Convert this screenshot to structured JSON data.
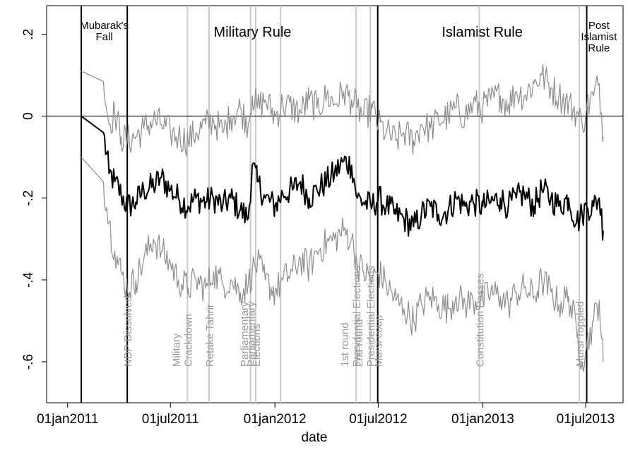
{
  "chart_data": {
    "type": "line",
    "xlabel": "date",
    "ylabel": "",
    "x_ticks": [
      "01jan2011",
      "01jul2011",
      "01jan2012",
      "01jul2012",
      "01jan2013",
      "01jul2013"
    ],
    "y_ticks": [
      ".2",
      "0",
      "-.2",
      "-.4",
      "-.6"
    ],
    "y_tick_values": [
      0.2,
      0,
      -0.2,
      -0.4,
      -0.6
    ],
    "xlim": [
      "2010-11-25",
      "2013-09-05"
    ],
    "ylim": [
      -0.7,
      0.27
    ],
    "reference_line_y": 0,
    "regimes": [
      {
        "label": [
          "Mubarak's",
          "Fall"
        ],
        "start": "2011-01-25",
        "end": "2011-04-16"
      },
      {
        "label": [
          "Military Rule"
        ],
        "start": "2011-04-16",
        "end": "2012-06-30"
      },
      {
        "label": [
          "Islamist Rule"
        ],
        "start": "2012-06-30",
        "end": "2013-07-03"
      },
      {
        "label": [
          "Post",
          "Islamist",
          "Rule"
        ],
        "start": "2013-07-03",
        "end": "2013-08-15"
      }
    ],
    "regime_boundaries": [
      "2011-01-25",
      "2011-04-16",
      "2012-06-30",
      "2013-07-03"
    ],
    "events": [
      {
        "date": "2011-04-16",
        "lines": [
          "NDP Dissolved"
        ]
      },
      {
        "date": "2011-07-31",
        "lines": [
          "Military",
          "Crackdown"
        ]
      },
      {
        "date": "2011-09-07",
        "lines": [
          "Retake Tahrir"
        ]
      },
      {
        "date": "2011-11-19",
        "lines": [
          "Parliamentary"
        ]
      },
      {
        "date": "2011-11-28",
        "lines": [
          "Parliamentary",
          "Elections"
        ]
      },
      {
        "date": "2012-01-11",
        "lines": [
          ""
        ]
      },
      {
        "date": "2012-05-23",
        "lines": [
          "1st round",
          "Presidential Elections"
        ]
      },
      {
        "date": "2012-06-17",
        "lines": [
          "2nd round",
          "Presidential Elections"
        ]
      },
      {
        "date": "2012-06-30",
        "lines": [
          "Mursi coup"
        ]
      },
      {
        "date": "2012-12-26",
        "lines": [
          "Constitution Passes"
        ]
      },
      {
        "date": "2013-06-20",
        "lines": [
          "Mursi Toppled"
        ]
      }
    ],
    "series": [
      {
        "role": "estimate",
        "color": "#000000",
        "points": [
          [
            "2011-01-25",
            0.0
          ],
          [
            "2011-03-05",
            -0.04
          ],
          [
            "2011-03-15",
            -0.14
          ],
          [
            "2011-03-25",
            -0.16
          ],
          [
            "2011-04-05",
            -0.19
          ],
          [
            "2011-04-16",
            -0.22
          ],
          [
            "2011-05-01",
            -0.21
          ],
          [
            "2011-05-15",
            -0.18
          ],
          [
            "2011-06-01",
            -0.17
          ],
          [
            "2011-06-15",
            -0.15
          ],
          [
            "2011-07-01",
            -0.18
          ],
          [
            "2011-07-15",
            -0.2
          ],
          [
            "2011-08-01",
            -0.22
          ],
          [
            "2011-08-15",
            -0.2
          ],
          [
            "2011-09-01",
            -0.21
          ],
          [
            "2011-09-15",
            -0.2
          ],
          [
            "2011-10-01",
            -0.22
          ],
          [
            "2011-10-15",
            -0.2
          ],
          [
            "2011-11-01",
            -0.23
          ],
          [
            "2011-11-15",
            -0.25
          ],
          [
            "2011-11-22",
            -0.12
          ],
          [
            "2011-12-01",
            -0.16
          ],
          [
            "2011-12-15",
            -0.2
          ],
          [
            "2012-01-01",
            -0.22
          ],
          [
            "2012-01-15",
            -0.19
          ],
          [
            "2012-02-01",
            -0.18
          ],
          [
            "2012-02-15",
            -0.16
          ],
          [
            "2012-03-01",
            -0.2
          ],
          [
            "2012-03-15",
            -0.18
          ],
          [
            "2012-04-01",
            -0.16
          ],
          [
            "2012-04-15",
            -0.14
          ],
          [
            "2012-05-01",
            -0.11
          ],
          [
            "2012-05-15",
            -0.12
          ],
          [
            "2012-05-25",
            -0.2
          ],
          [
            "2012-06-05",
            -0.21
          ],
          [
            "2012-06-20",
            -0.22
          ],
          [
            "2012-07-01",
            -0.2
          ],
          [
            "2012-07-15",
            -0.22
          ],
          [
            "2012-08-01",
            -0.24
          ],
          [
            "2012-08-15",
            -0.25
          ],
          [
            "2012-09-01",
            -0.27
          ],
          [
            "2012-09-15",
            -0.24
          ],
          [
            "2012-10-01",
            -0.22
          ],
          [
            "2012-10-15",
            -0.24
          ],
          [
            "2012-11-01",
            -0.23
          ],
          [
            "2012-11-15",
            -0.2
          ],
          [
            "2012-12-01",
            -0.22
          ],
          [
            "2012-12-15",
            -0.21
          ],
          [
            "2013-01-01",
            -0.22
          ],
          [
            "2013-01-15",
            -0.21
          ],
          [
            "2013-02-01",
            -0.2
          ],
          [
            "2013-02-15",
            -0.22
          ],
          [
            "2013-03-01",
            -0.2
          ],
          [
            "2013-03-15",
            -0.19
          ],
          [
            "2013-04-01",
            -0.22
          ],
          [
            "2013-04-15",
            -0.18
          ],
          [
            "2013-05-01",
            -0.2
          ],
          [
            "2013-05-15",
            -0.22
          ],
          [
            "2013-06-01",
            -0.2
          ],
          [
            "2013-06-15",
            -0.26
          ],
          [
            "2013-06-25",
            -0.24
          ],
          [
            "2013-07-03",
            -0.22
          ],
          [
            "2013-07-15",
            -0.22
          ],
          [
            "2013-07-25",
            -0.2
          ],
          [
            "2013-08-01",
            -0.28
          ]
        ]
      },
      {
        "role": "upper confidence bound",
        "color": "#8c8c8c",
        "points": [
          [
            "2011-01-25",
            0.11
          ],
          [
            "2011-03-05",
            0.085
          ],
          [
            "2011-03-15",
            -0.02
          ],
          [
            "2011-03-25",
            0.01
          ],
          [
            "2011-04-05",
            -0.05
          ],
          [
            "2011-04-16",
            -0.06
          ],
          [
            "2011-05-01",
            -0.05
          ],
          [
            "2011-05-15",
            -0.03
          ],
          [
            "2011-06-01",
            -0.01
          ],
          [
            "2011-06-15",
            -0.02
          ],
          [
            "2011-07-01",
            -0.04
          ],
          [
            "2011-07-15",
            -0.05
          ],
          [
            "2011-08-01",
            -0.06
          ],
          [
            "2011-08-15",
            -0.04
          ],
          [
            "2011-09-01",
            -0.02
          ],
          [
            "2011-09-15",
            -0.01
          ],
          [
            "2011-10-01",
            -0.04
          ],
          [
            "2011-10-15",
            0.0
          ],
          [
            "2011-11-01",
            0.02
          ],
          [
            "2011-11-15",
            -0.02
          ],
          [
            "2011-11-22",
            0.05
          ],
          [
            "2011-12-01",
            0.02
          ],
          [
            "2011-12-15",
            0.04
          ],
          [
            "2012-01-01",
            0.0
          ],
          [
            "2012-01-15",
            0.03
          ],
          [
            "2012-02-01",
            0.02
          ],
          [
            "2012-02-15",
            0.01
          ],
          [
            "2012-03-01",
            0.04
          ],
          [
            "2012-03-15",
            0.02
          ],
          [
            "2012-04-01",
            0.05
          ],
          [
            "2012-04-15",
            0.03
          ],
          [
            "2012-05-01",
            0.06
          ],
          [
            "2012-05-15",
            0.04
          ],
          [
            "2012-05-25",
            0.02
          ],
          [
            "2012-06-05",
            0.0
          ],
          [
            "2012-06-20",
            0.02
          ],
          [
            "2012-07-01",
            -0.02
          ],
          [
            "2012-07-15",
            -0.04
          ],
          [
            "2012-08-01",
            -0.06
          ],
          [
            "2012-08-15",
            -0.04
          ],
          [
            "2012-09-01",
            -0.06
          ],
          [
            "2012-09-15",
            -0.02
          ],
          [
            "2012-10-01",
            -0.03
          ],
          [
            "2012-10-15",
            -0.01
          ],
          [
            "2012-11-01",
            0.0
          ],
          [
            "2012-11-15",
            0.02
          ],
          [
            "2012-12-01",
            0.0
          ],
          [
            "2012-12-15",
            0.03
          ],
          [
            "2013-01-01",
            0.02
          ],
          [
            "2013-01-15",
            0.04
          ],
          [
            "2013-02-01",
            0.05
          ],
          [
            "2013-02-15",
            0.03
          ],
          [
            "2013-03-01",
            0.06
          ],
          [
            "2013-03-15",
            0.05
          ],
          [
            "2013-04-01",
            0.08
          ],
          [
            "2013-04-15",
            0.1
          ],
          [
            "2013-05-01",
            0.07
          ],
          [
            "2013-05-15",
            0.05
          ],
          [
            "2013-06-01",
            0.03
          ],
          [
            "2013-06-15",
            0.01
          ],
          [
            "2013-06-25",
            -0.02
          ],
          [
            "2013-07-03",
            0.02
          ],
          [
            "2013-07-15",
            0.05
          ],
          [
            "2013-07-25",
            0.08
          ],
          [
            "2013-08-01",
            -0.05
          ]
        ]
      },
      {
        "role": "lower confidence bound",
        "color": "#8c8c8c",
        "points": [
          [
            "2011-01-25",
            -0.1
          ],
          [
            "2011-03-05",
            -0.16
          ],
          [
            "2011-03-15",
            -0.26
          ],
          [
            "2011-03-25",
            -0.33
          ],
          [
            "2011-04-05",
            -0.38
          ],
          [
            "2011-04-16",
            -0.42
          ],
          [
            "2011-05-01",
            -0.4
          ],
          [
            "2011-05-15",
            -0.35
          ],
          [
            "2011-06-01",
            -0.3
          ],
          [
            "2011-06-15",
            -0.33
          ],
          [
            "2011-07-01",
            -0.36
          ],
          [
            "2011-07-15",
            -0.4
          ],
          [
            "2011-08-01",
            -0.42
          ],
          [
            "2011-08-15",
            -0.4
          ],
          [
            "2011-09-01",
            -0.42
          ],
          [
            "2011-09-15",
            -0.38
          ],
          [
            "2011-10-01",
            -0.41
          ],
          [
            "2011-10-15",
            -0.4
          ],
          [
            "2011-11-01",
            -0.43
          ],
          [
            "2011-11-15",
            -0.41
          ],
          [
            "2011-11-22",
            -0.38
          ],
          [
            "2011-12-01",
            -0.36
          ],
          [
            "2011-12-15",
            -0.4
          ],
          [
            "2012-01-01",
            -0.43
          ],
          [
            "2012-01-15",
            -0.4
          ],
          [
            "2012-02-01",
            -0.38
          ],
          [
            "2012-02-15",
            -0.35
          ],
          [
            "2012-03-01",
            -0.37
          ],
          [
            "2012-03-15",
            -0.33
          ],
          [
            "2012-04-01",
            -0.31
          ],
          [
            "2012-04-15",
            -0.3
          ],
          [
            "2012-05-01",
            -0.28
          ],
          [
            "2012-05-15",
            -0.3
          ],
          [
            "2012-05-25",
            -0.36
          ],
          [
            "2012-06-05",
            -0.38
          ],
          [
            "2012-06-20",
            -0.4
          ],
          [
            "2012-07-01",
            -0.38
          ],
          [
            "2012-07-15",
            -0.41
          ],
          [
            "2012-08-01",
            -0.45
          ],
          [
            "2012-08-15",
            -0.47
          ],
          [
            "2012-09-01",
            -0.5
          ],
          [
            "2012-09-15",
            -0.46
          ],
          [
            "2012-10-01",
            -0.44
          ],
          [
            "2012-10-15",
            -0.46
          ],
          [
            "2012-11-01",
            -0.47
          ],
          [
            "2012-11-15",
            -0.44
          ],
          [
            "2012-12-01",
            -0.46
          ],
          [
            "2012-12-15",
            -0.45
          ],
          [
            "2013-01-01",
            -0.45
          ],
          [
            "2013-01-15",
            -0.43
          ],
          [
            "2013-02-01",
            -0.44
          ],
          [
            "2013-02-15",
            -0.46
          ],
          [
            "2013-03-01",
            -0.43
          ],
          [
            "2013-03-15",
            -0.42
          ],
          [
            "2013-04-01",
            -0.44
          ],
          [
            "2013-04-15",
            -0.4
          ],
          [
            "2013-05-01",
            -0.43
          ],
          [
            "2013-05-15",
            -0.46
          ],
          [
            "2013-06-01",
            -0.44
          ],
          [
            "2013-06-15",
            -0.52
          ],
          [
            "2013-06-25",
            -0.6
          ],
          [
            "2013-07-03",
            -0.56
          ],
          [
            "2013-07-15",
            -0.5
          ],
          [
            "2013-07-25",
            -0.45
          ],
          [
            "2013-08-01",
            -0.6
          ]
        ]
      }
    ]
  }
}
